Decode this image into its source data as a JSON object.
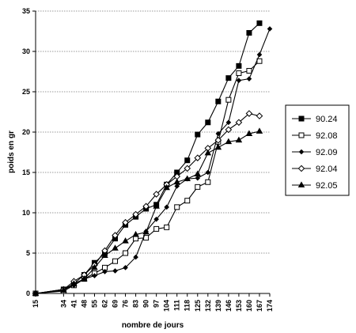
{
  "chart_data": {
    "type": "line",
    "title": "",
    "xlabel": "nombre de jours",
    "ylabel": "poids en gr",
    "ylim": [
      0,
      35
    ],
    "yticks": [
      0,
      5,
      10,
      15,
      20,
      25,
      30,
      35
    ],
    "grid": "horizontal dotted",
    "legend_placement": "right",
    "categories": [
      "15",
      "34",
      "41",
      "48",
      "55",
      "62",
      "69",
      "76",
      "83",
      "90",
      "97",
      "104",
      "111",
      "118",
      "125",
      "132",
      "139",
      "146",
      "153",
      "160",
      "167",
      "174"
    ],
    "series": [
      {
        "name": "90.24",
        "marker": "filled-square",
        "x": [
          15,
          34,
          41,
          48,
          55,
          62,
          69,
          76,
          83,
          90,
          97,
          104,
          111,
          118,
          125,
          132,
          139,
          146,
          153,
          160,
          167
        ],
        "values": [
          0,
          0.5,
          1.2,
          2.3,
          3.8,
          5,
          6.8,
          8.5,
          9.5,
          10.5,
          11,
          13.5,
          15,
          16.5,
          19.7,
          21.2,
          23.8,
          26.7,
          28.2,
          32.3,
          33.5
        ]
      },
      {
        "name": "92.08",
        "marker": "open-square",
        "x": [
          15,
          34,
          41,
          48,
          55,
          62,
          69,
          76,
          83,
          90,
          97,
          104,
          111,
          118,
          125,
          132,
          139,
          146,
          153,
          160,
          167
        ],
        "values": [
          0,
          0.3,
          1,
          1.8,
          2.5,
          3.2,
          4,
          5,
          6.8,
          6.9,
          8,
          8.2,
          10.7,
          11.5,
          13.2,
          13.8,
          18.8,
          24,
          27.3,
          27.6,
          28.8
        ]
      },
      {
        "name": "92.09",
        "marker": "filled-diamond",
        "x": [
          15,
          34,
          41,
          48,
          55,
          62,
          69,
          76,
          83,
          90,
          97,
          104,
          111,
          118,
          125,
          132,
          139,
          146,
          153,
          160,
          167,
          174
        ],
        "values": [
          0,
          0.5,
          1,
          1.8,
          2.2,
          2.7,
          2.8,
          3.2,
          4.5,
          7.7,
          9.2,
          10.7,
          13.3,
          14.2,
          14.3,
          15,
          19.8,
          21.2,
          26.4,
          26.6,
          29.6,
          32.8
        ]
      },
      {
        "name": "92.04",
        "marker": "open-diamond",
        "x": [
          15,
          34,
          41,
          48,
          55,
          62,
          69,
          76,
          83,
          90,
          97,
          104,
          111,
          118,
          125,
          132,
          139,
          146,
          153,
          160,
          167
        ],
        "values": [
          0,
          0.5,
          1.5,
          2.3,
          3.5,
          5.3,
          7.2,
          8.8,
          9.8,
          10.8,
          12.3,
          13.5,
          14.5,
          15.5,
          16.8,
          18,
          19,
          20.3,
          21.2,
          22.3,
          22
        ]
      },
      {
        "name": "92.05",
        "marker": "filled-triangle",
        "x": [
          15,
          34,
          41,
          48,
          55,
          62,
          69,
          76,
          83,
          90,
          97,
          104,
          111,
          118,
          125,
          132,
          139,
          146,
          153,
          160,
          167
        ],
        "values": [
          0,
          0.4,
          1.2,
          1.8,
          3.2,
          4.7,
          5.6,
          6.5,
          7.3,
          7.6,
          10.8,
          13.1,
          13.8,
          14.2,
          14.8,
          17.4,
          18.1,
          18.8,
          19,
          19.8,
          20.1
        ]
      }
    ]
  }
}
